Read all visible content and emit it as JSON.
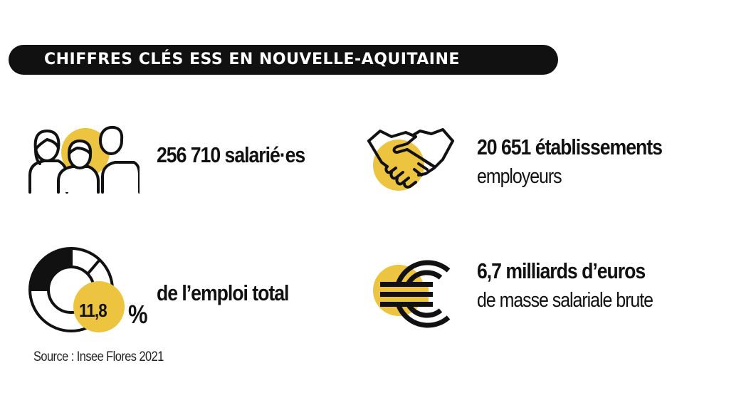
{
  "title": "CHIFFRES CLÉS ESS EN NOUVELLE-AQUITAINE",
  "colors": {
    "accent": "#ECC43F",
    "dark": "#111111",
    "background": "#FFFFFF",
    "banner_text": "#FFFFFF"
  },
  "stats": {
    "employees": {
      "main": "256 710 salarié·es",
      "icon": "people-group-icon"
    },
    "establishments": {
      "main": "20 651 établissements",
      "sub": "employeurs",
      "icon": "handshake-icon"
    },
    "employment_share": {
      "value": "11,8",
      "unit": "%",
      "sub": "de l’emploi total",
      "icon": "donut-chart-icon",
      "share": 0.118
    },
    "payroll": {
      "main": "6,7 milliards d’euros",
      "sub": "de masse salariale brute",
      "icon": "euro-icon"
    }
  },
  "source": "Source : Insee Flores 2021"
}
